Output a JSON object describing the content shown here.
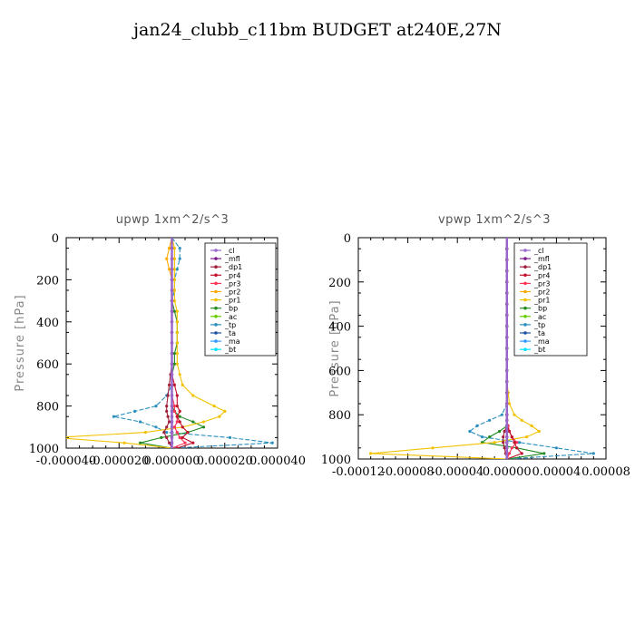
{
  "title": "jan24_clubb_c11bm  BUDGET at240E,27N",
  "chart_data": [
    {
      "type": "line",
      "title": "upwp   1xm^2/s^3",
      "xlabel": "",
      "ylabel": "Pressure [hPa]",
      "xlim": [
        -4e-05,
        4e-05
      ],
      "ylim": [
        1000,
        0
      ],
      "xticks": [
        "-0.000040",
        "-0.000020",
        "0.000000",
        "0.000020",
        "0.000040"
      ],
      "yticks": [
        "0",
        "200",
        "400",
        "600",
        "800",
        "1000"
      ],
      "grid": false,
      "legend_position": "top-right",
      "y": [
        50,
        100,
        150,
        200,
        250,
        300,
        350,
        400,
        450,
        500,
        550,
        600,
        650,
        700,
        750,
        800,
        825,
        850,
        875,
        900,
        925,
        950,
        975,
        1000
      ],
      "series": [
        {
          "name": "_cl",
          "color": "#9966cc",
          "values": [
            0,
            0,
            0,
            0,
            0,
            0,
            0,
            0,
            0,
            0,
            0,
            0,
            0,
            0,
            0,
            0,
            0,
            0,
            0,
            0,
            0,
            0,
            0,
            0
          ]
        },
        {
          "name": "_mfl",
          "color": "#7a1f8a",
          "values": [
            0,
            0,
            0,
            0,
            0,
            0,
            0,
            0,
            0,
            0,
            0,
            0,
            0,
            0,
            0,
            0,
            0,
            0,
            0,
            0,
            0,
            0,
            0,
            0
          ]
        },
        {
          "name": "_dp1",
          "color": "#a0203a",
          "values": [
            0,
            0,
            0,
            0,
            0,
            0,
            0,
            0,
            0,
            0,
            0,
            0,
            -5e-07,
            -1e-06,
            -1.5e-06,
            -2e-06,
            -2e-06,
            -1.5e-06,
            -1e-06,
            -2e-06,
            -3e-06,
            -2e-06,
            -1e-06,
            0
          ]
        },
        {
          "name": "_pr4",
          "color": "#c0102a",
          "values": [
            0,
            0,
            0,
            0,
            0,
            0,
            0,
            0,
            0,
            0,
            0,
            0,
            0,
            1e-06,
            2e-06,
            2e-06,
            3e-06,
            2e-06,
            3e-06,
            4e-06,
            6e-06,
            4e-06,
            8e-06,
            2e-06
          ]
        },
        {
          "name": "_pr3",
          "color": "#ff3355",
          "values": [
            0,
            0,
            0,
            0,
            0,
            0,
            0,
            0,
            0,
            0,
            0,
            0,
            0,
            0,
            0,
            1e-06,
            1e-06,
            2e-06,
            2e-06,
            1e-06,
            2e-06,
            3e-06,
            5e-06,
            0
          ]
        },
        {
          "name": "_pr2",
          "color": "#ffaa00",
          "values": [
            -1e-06,
            -2e-06,
            -1e-06,
            0,
            0,
            0,
            0,
            0,
            0,
            0,
            0,
            0,
            0,
            0,
            0,
            0,
            0,
            0,
            0,
            0,
            0,
            0,
            0,
            0
          ]
        },
        {
          "name": "_pr1",
          "color": "#f2c200",
          "values": [
            1e-06,
            1e-06,
            1e-06,
            1e-06,
            1e-06,
            1e-06,
            2e-06,
            2e-06,
            2e-06,
            2e-06,
            2e-06,
            2e-06,
            3e-06,
            4e-06,
            8e-06,
            1.6e-05,
            2e-05,
            1.8e-05,
            1.2e-05,
            4e-06,
            -1e-05,
            -4.4e-05,
            -1.8e-05,
            0
          ]
        },
        {
          "name": "_bp",
          "color": "#228b22",
          "values": [
            0,
            0,
            0,
            0,
            0,
            0,
            1e-06,
            2e-06,
            2e-06,
            2e-06,
            1e-06,
            1e-06,
            0,
            0,
            0,
            0,
            1e-06,
            3e-06,
            8e-06,
            1.2e-05,
            6e-06,
            -4e-06,
            -1.2e-05,
            0
          ]
        },
        {
          "name": "_ac",
          "color": "#66cc00",
          "values": [
            0,
            0,
            0,
            0,
            0,
            0,
            0,
            0,
            0,
            0,
            0,
            0,
            0,
            0,
            0,
            0,
            0,
            0,
            0,
            0,
            0,
            0,
            0,
            0
          ]
        },
        {
          "name": "_tp",
          "color": "#2a8fbd",
          "values": [
            3e-06,
            3e-06,
            2e-06,
            1e-06,
            1e-06,
            0,
            0,
            0,
            0,
            0,
            0,
            0,
            0,
            0,
            -2e-06,
            -6e-06,
            -1.4e-05,
            -2.2e-05,
            -1.2e-05,
            -6e-06,
            -2e-06,
            2.2e-05,
            3.8e-05,
            0
          ]
        },
        {
          "name": "_ta",
          "color": "#1a50a0",
          "values": [
            0,
            0,
            0,
            0,
            0,
            0,
            0,
            0,
            0,
            0,
            0,
            0,
            0,
            0,
            0,
            0,
            0,
            0,
            0,
            0,
            0,
            0,
            0,
            0
          ]
        },
        {
          "name": "_ma",
          "color": "#3399ff",
          "values": [
            0,
            0,
            0,
            0,
            0,
            0,
            0,
            0,
            0,
            0,
            0,
            0,
            0,
            0,
            0,
            0,
            0,
            0,
            0,
            0,
            0,
            0,
            0,
            0
          ]
        },
        {
          "name": "_bt",
          "color": "#00e5ff",
          "values": [
            0,
            0,
            0,
            0,
            0,
            0,
            0,
            0,
            0,
            0,
            0,
            0,
            0,
            0,
            0,
            0,
            0,
            0,
            0,
            0,
            0,
            0,
            0,
            0
          ]
        }
      ]
    },
    {
      "type": "line",
      "title": "vpwp   1xm^2/s^3",
      "xlabel": "",
      "ylabel": "Pressure [hPa]",
      "xlim": [
        -0.00012,
        8e-05
      ],
      "ylim": [
        1000,
        0
      ],
      "xticks": [
        "-0.00012",
        "-0.00008",
        "-0.00004",
        "0.00000",
        "0.00004",
        "0.00008"
      ],
      "yticks": [
        "0",
        "200",
        "400",
        "600",
        "800",
        "1000"
      ],
      "grid": false,
      "legend_position": "top-right",
      "y": [
        50,
        100,
        150,
        200,
        250,
        300,
        350,
        400,
        450,
        500,
        550,
        600,
        650,
        700,
        750,
        800,
        825,
        850,
        875,
        900,
        925,
        950,
        975,
        1000
      ],
      "series": [
        {
          "name": "_cl",
          "color": "#9966cc",
          "values": [
            0,
            0,
            0,
            0,
            0,
            0,
            0,
            0,
            0,
            0,
            0,
            0,
            0,
            0,
            0,
            0,
            0,
            0,
            0,
            0,
            0,
            0,
            0,
            0
          ]
        },
        {
          "name": "_mfl",
          "color": "#7a1f8a",
          "values": [
            0,
            0,
            0,
            0,
            0,
            0,
            0,
            0,
            0,
            0,
            0,
            0,
            0,
            0,
            0,
            0,
            0,
            0,
            0,
            0,
            0,
            0,
            0,
            0
          ]
        },
        {
          "name": "_dp1",
          "color": "#a0203a",
          "values": [
            0,
            0,
            0,
            0,
            0,
            0,
            0,
            0,
            0,
            0,
            0,
            0,
            0,
            0,
            0,
            0,
            0,
            0,
            -2e-06,
            -3e-06,
            -3e-06,
            -2e-06,
            -1e-06,
            0
          ]
        },
        {
          "name": "_pr4",
          "color": "#c0102a",
          "values": [
            0,
            0,
            0,
            0,
            0,
            0,
            0,
            0,
            0,
            0,
            0,
            0,
            0,
            0,
            0,
            0,
            0,
            0,
            2e-06,
            4e-06,
            6e-06,
            8e-06,
            1.2e-05,
            0
          ]
        },
        {
          "name": "_pr3",
          "color": "#ff3355",
          "values": [
            0,
            0,
            0,
            0,
            0,
            0,
            0,
            0,
            0,
            0,
            0,
            0,
            0,
            0,
            0,
            0,
            0,
            1e-06,
            2e-06,
            4e-06,
            8e-06,
            4e-06,
            2e-06,
            0
          ]
        },
        {
          "name": "_pr2",
          "color": "#ffaa00",
          "values": [
            0,
            0,
            0,
            0,
            0,
            0,
            0,
            0,
            0,
            0,
            0,
            0,
            0,
            0,
            0,
            0,
            0,
            0,
            0,
            0,
            0,
            0,
            0,
            0
          ]
        },
        {
          "name": "_pr1",
          "color": "#f2c200",
          "values": [
            0,
            0,
            0,
            0,
            0,
            0,
            0,
            0,
            0,
            0,
            0,
            0,
            0,
            1e-06,
            2e-06,
            6e-06,
            1.2e-05,
            2e-05,
            2.6e-05,
            1.6e-05,
            -1e-05,
            -6e-05,
            -0.00011,
            0
          ]
        },
        {
          "name": "_bp",
          "color": "#228b22",
          "values": [
            0,
            0,
            0,
            0,
            0,
            0,
            0,
            0,
            0,
            0,
            0,
            0,
            0,
            0,
            0,
            0,
            0,
            0,
            -6e-06,
            -1.4e-05,
            -2e-05,
            8e-06,
            3e-05,
            0
          ]
        },
        {
          "name": "_ac",
          "color": "#66cc00",
          "values": [
            0,
            0,
            0,
            0,
            0,
            0,
            0,
            0,
            0,
            0,
            0,
            0,
            0,
            0,
            0,
            0,
            0,
            0,
            0,
            0,
            0,
            0,
            0,
            0
          ]
        },
        {
          "name": "_tp",
          "color": "#2a8fbd",
          "values": [
            0,
            0,
            0,
            0,
            0,
            0,
            0,
            0,
            0,
            0,
            0,
            0,
            0,
            0,
            0,
            -4e-06,
            -1.4e-05,
            -2.4e-05,
            -3e-05,
            -2e-05,
            1e-05,
            4e-05,
            7e-05,
            0
          ]
        },
        {
          "name": "_ta",
          "color": "#1a50a0",
          "values": [
            0,
            0,
            0,
            0,
            0,
            0,
            0,
            0,
            0,
            0,
            0,
            0,
            0,
            0,
            0,
            0,
            0,
            0,
            0,
            0,
            0,
            0,
            0,
            0
          ]
        },
        {
          "name": "_ma",
          "color": "#3399ff",
          "values": [
            0,
            0,
            0,
            0,
            0,
            0,
            0,
            0,
            0,
            0,
            0,
            0,
            0,
            0,
            0,
            0,
            0,
            0,
            0,
            0,
            0,
            0,
            0,
            0
          ]
        },
        {
          "name": "_bt",
          "color": "#00e5ff",
          "values": [
            0,
            0,
            0,
            0,
            0,
            0,
            0,
            0,
            0,
            0,
            0,
            0,
            0,
            0,
            0,
            0,
            0,
            0,
            0,
            0,
            0,
            0,
            0,
            0
          ]
        }
      ]
    }
  ]
}
